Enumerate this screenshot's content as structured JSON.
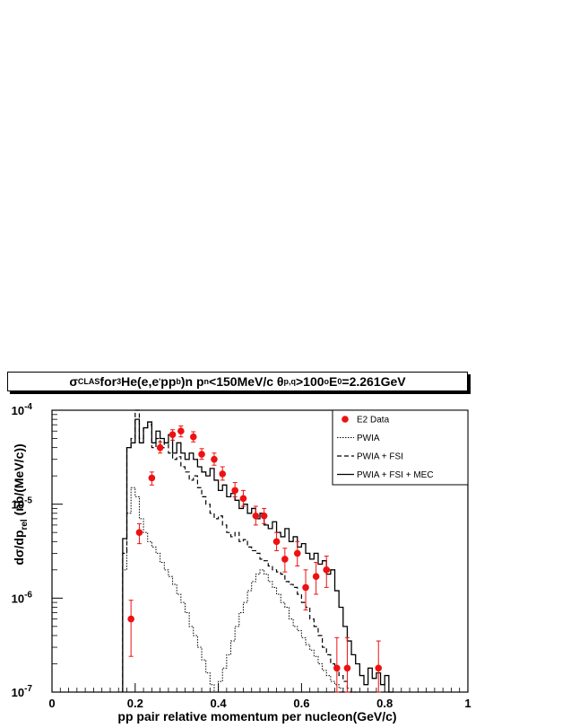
{
  "chart_data": {
    "type": "line",
    "title": {
      "sigma": "σ",
      "sigma_sub": "CLAS",
      "t1": " for ",
      "he_sup": "3",
      "t2": "He(e,e",
      "prime": "'",
      "t3": "pp",
      "b_sub": "b",
      "t4": ")n p",
      "n_sub": "n",
      "t5": "<150MeV/c  θ",
      "theta_sub": "p,q",
      "t6": ">100",
      "deg_sup": "o",
      "t7": " E",
      "e_sub": "0",
      "t8": "=2.261GeV"
    },
    "xlabel": "pp pair relative momentum per nucleon(GeV/c)",
    "ylabel": "dσ/dp",
    "ylabel_sub": "rel",
    "ylabel_tail": " (nb/(MeV/c))",
    "xlim": [
      0,
      1
    ],
    "ylim": [
      1e-07,
      0.0001
    ],
    "y_log": true,
    "x_ticks": [
      {
        "v": 0,
        "label": "0"
      },
      {
        "v": 0.2,
        "label": "0.2"
      },
      {
        "v": 0.4,
        "label": "0.4"
      },
      {
        "v": 0.6,
        "label": "0.6"
      },
      {
        "v": 0.8,
        "label": "0.8"
      },
      {
        "v": 1,
        "label": "1"
      }
    ],
    "y_ticks": [
      {
        "v": 1e-07,
        "base": "10",
        "exp": "-7"
      },
      {
        "v": 1e-06,
        "base": "10",
        "exp": "-6"
      },
      {
        "v": 1e-05,
        "base": "10",
        "exp": "-5"
      },
      {
        "v": 0.0001,
        "base": "10",
        "exp": "-4"
      }
    ],
    "legend_position": "top-right",
    "legend": [
      {
        "label": "E2 Data",
        "style": "marker"
      },
      {
        "label": "PWIA",
        "style": "dotted"
      },
      {
        "label": "PWIA + FSI",
        "style": "dashed"
      },
      {
        "label": "PWIA + FSI + MEC",
        "style": "solid"
      }
    ],
    "colors": {
      "data": "#ee1111",
      "curves": "#000000"
    },
    "bin_width": 0.01,
    "data_points": [
      {
        "x": 0.19,
        "y": 6e-07,
        "lo": 2.4e-07,
        "hi": 9.5e-07
      },
      {
        "x": 0.21,
        "y": 5e-06,
        "lo": 3.8e-06,
        "hi": 6.2e-06
      },
      {
        "x": 0.24,
        "y": 1.9e-05,
        "lo": 1.6e-05,
        "hi": 2.2e-05
      },
      {
        "x": 0.26,
        "y": 4e-05,
        "lo": 3.5e-05,
        "hi": 4.6e-05
      },
      {
        "x": 0.29,
        "y": 5.5e-05,
        "lo": 4.8e-05,
        "hi": 6.2e-05
      },
      {
        "x": 0.31,
        "y": 6e-05,
        "lo": 5.2e-05,
        "hi": 6.8e-05
      },
      {
        "x": 0.34,
        "y": 5.2e-05,
        "lo": 4.6e-05,
        "hi": 5.9e-05
      },
      {
        "x": 0.36,
        "y": 3.4e-05,
        "lo": 3e-05,
        "hi": 3.9e-05
      },
      {
        "x": 0.39,
        "y": 3e-05,
        "lo": 2.6e-05,
        "hi": 3.5e-05
      },
      {
        "x": 0.41,
        "y": 2.1e-05,
        "lo": 1.8e-05,
        "hi": 2.5e-05
      },
      {
        "x": 0.44,
        "y": 1.4e-05,
        "lo": 1.2e-05,
        "hi": 1.7e-05
      },
      {
        "x": 0.46,
        "y": 1.15e-05,
        "lo": 9.5e-06,
        "hi": 1.4e-05
      },
      {
        "x": 0.49,
        "y": 7.5e-06,
        "lo": 6e-06,
        "hi": 9.5e-06
      },
      {
        "x": 0.51,
        "y": 7.5e-06,
        "lo": 6.2e-06,
        "hi": 9e-06
      },
      {
        "x": 0.54,
        "y": 4e-06,
        "lo": 3.2e-06,
        "hi": 5e-06
      },
      {
        "x": 0.56,
        "y": 2.6e-06,
        "lo": 1.9e-06,
        "hi": 3.4e-06
      },
      {
        "x": 0.59,
        "y": 3e-06,
        "lo": 2.2e-06,
        "hi": 4e-06
      },
      {
        "x": 0.61,
        "y": 1.3e-06,
        "lo": 7.5e-07,
        "hi": 2e-06
      },
      {
        "x": 0.635,
        "y": 1.7e-06,
        "lo": 1.1e-06,
        "hi": 2.4e-06
      },
      {
        "x": 0.66,
        "y": 2e-06,
        "lo": 1.3e-06,
        "hi": 2.8e-06
      },
      {
        "x": 0.685,
        "y": 1.8e-07,
        "lo": 1e-07,
        "hi": 3.8e-07
      },
      {
        "x": 0.71,
        "y": 1.8e-07,
        "lo": 1e-07,
        "hi": 3.8e-07
      },
      {
        "x": 0.785,
        "y": 1.8e-07,
        "lo": 1e-07,
        "hi": 3.5e-07
      }
    ],
    "series": [
      {
        "style": "solid",
        "x0": 0.17,
        "values": [
          4.3e-06,
          4e-05,
          4.5e-05,
          8e-05,
          4.5e-05,
          6.5e-05,
          7.5e-05,
          4.5e-05,
          6e-05,
          5e-05,
          4.5e-05,
          5.5e-05,
          3.5e-05,
          4.5e-05,
          3.5e-05,
          3e-05,
          3.5e-05,
          3e-05,
          2.5e-05,
          2.2e-05,
          2e-05,
          2.4e-05,
          1.8e-05,
          1.4e-05,
          1.6e-05,
          1.2e-05,
          1.3e-05,
          1.1e-05,
          9e-06,
          1e-05,
          8e-06,
          9e-06,
          7e-06,
          8e-06,
          6e-06,
          5.5e-06,
          6.5e-06,
          5e-06,
          4.5e-06,
          5.5e-06,
          4e-06,
          4.5e-06,
          3.5e-06,
          3.8e-06,
          3e-06,
          2.6e-06,
          3e-06,
          2.3e-06,
          2.5e-06,
          1.8e-06,
          2e-06,
          1.2e-06,
          8e-07,
          5e-07,
          3.5e-07,
          2.5e-07,
          2e-07,
          1.5e-07,
          1.2e-07,
          1.8e-07,
          1.4e-07,
          1.6e-07,
          1.2e-07,
          1.5e-07,
          1e-07
        ]
      },
      {
        "style": "dashed",
        "x0": 0.17,
        "values": [
          3e-06,
          4e-05,
          5e-05,
          0.0001,
          5e-05,
          6.5e-05,
          7e-05,
          4e-05,
          5e-05,
          4e-05,
          4.5e-05,
          3.5e-05,
          3e-05,
          3.2e-05,
          2.5e-05,
          2.2e-05,
          1.8e-05,
          2e-05,
          1.5e-05,
          1.2e-05,
          1e-05,
          8e-06,
          7e-06,
          7.5e-06,
          6e-06,
          5e-06,
          4.5e-06,
          5e-06,
          4e-06,
          4.2e-06,
          3.5e-06,
          3.2e-06,
          3e-06,
          2.6e-06,
          2.5e-06,
          2.2e-06,
          2e-06,
          1.9e-06,
          1.8e-06,
          1.5e-06,
          1.4e-06,
          1.3e-06,
          1.1e-06,
          9e-07,
          8e-07,
          6e-07,
          5e-07,
          4e-07,
          3e-07,
          2.5e-07,
          2e-07,
          1.8e-07,
          1.5e-07,
          1.3e-07,
          1.1e-07,
          1e-07
        ]
      },
      {
        "style": "dotted",
        "x0": 0.17,
        "values": [
          2e-06,
          8e-06,
          1.5e-05,
          1.2e-05,
          7e-06,
          5e-06,
          4e-06,
          3.5e-06,
          3e-06,
          2.4e-06,
          2e-06,
          1.7e-06,
          1.4e-06,
          1.1e-06,
          9e-07,
          7e-07,
          5e-07,
          4e-07,
          3e-07,
          2.2e-07,
          1.6e-07,
          1.2e-07,
          1e-07,
          1.3e-07,
          1.8e-07,
          2.5e-07,
          3.5e-07,
          5e-07,
          7e-07,
          9e-07,
          1.2e-06,
          1.5e-06,
          1.8e-06,
          2e-06,
          1.8e-06,
          1.5e-06,
          1.3e-06,
          1.1e-06,
          9e-07,
          8e-07,
          6e-07,
          5e-07,
          4.5e-07,
          3.8e-07,
          3.2e-07,
          2.8e-07,
          2.4e-07,
          2e-07,
          1.7e-07,
          1.5e-07,
          1.3e-07,
          1.2e-07,
          1.1e-07,
          1e-07
        ]
      }
    ]
  }
}
